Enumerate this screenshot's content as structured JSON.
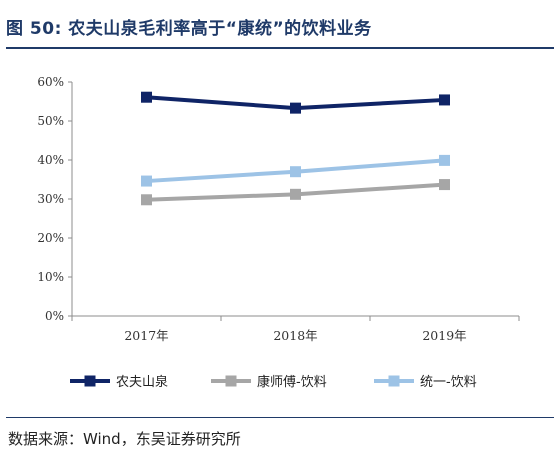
{
  "header": {
    "title": "图 50: 农夫山泉毛利率高于“康统”的饮料业务"
  },
  "footer": {
    "source": "数据来源：Wind，东吴证券研究所"
  },
  "chart_data": {
    "type": "line",
    "categories": [
      "2017年",
      "2018年",
      "2019年"
    ],
    "ylim": [
      0,
      60
    ],
    "yticks": [
      "0%",
      "10%",
      "20%",
      "30%",
      "40%",
      "50%",
      "60%"
    ],
    "series": [
      {
        "name": "农夫山泉",
        "values": [
          56.1,
          53.3,
          55.4
        ],
        "color": "#0f2466"
      },
      {
        "name": "康师傅-饮料",
        "values": [
          29.8,
          31.2,
          33.7
        ],
        "color": "#a6a6a6"
      },
      {
        "name": "统一-饮料",
        "values": [
          34.6,
          37.0,
          39.9
        ],
        "color": "#9dc3e6"
      }
    ],
    "grid": false,
    "legend_position": "bottom"
  }
}
